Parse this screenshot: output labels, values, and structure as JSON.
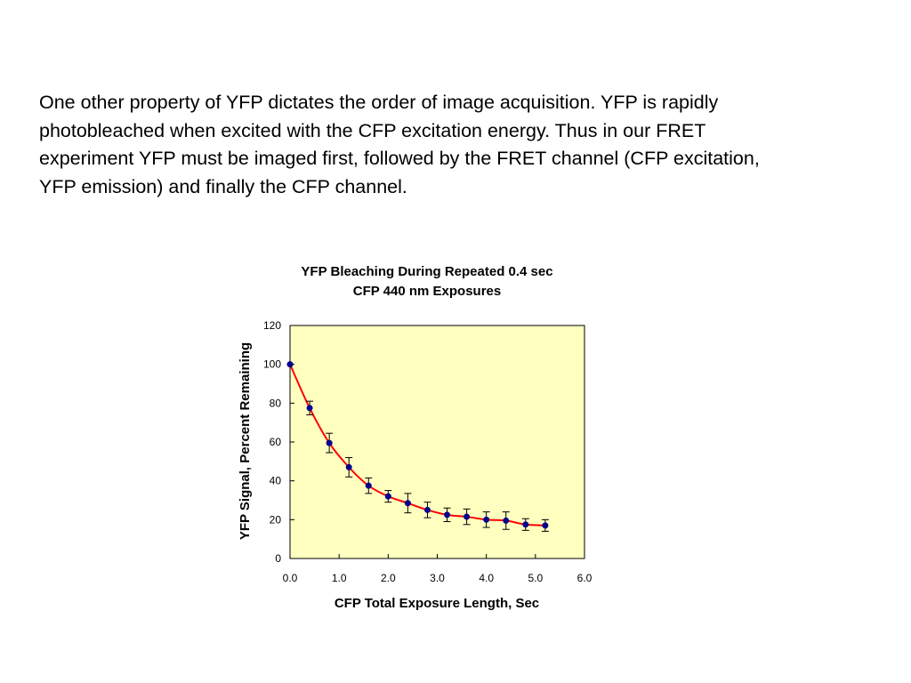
{
  "body_text": "One other property of YFP dictates the order of image acquisition. YFP is rapidly\nphotobleached when excited with the CFP excitation energy. Thus in our FRET\nexperiment YFP must be imaged first, followed by the FRET channel (CFP excitation,\nYFP emission) and finally the CFP channel.",
  "colors": {
    "plot_background": "#ffffc0",
    "line": "#ff0000",
    "marker": "#00008b",
    "error_bar": "#000000"
  },
  "chart_data": {
    "type": "scatter",
    "title_lines": [
      "YFP Bleaching During Repeated 0.4 sec",
      "CFP 440 nm Exposures"
    ],
    "xlabel": "CFP Total Exposure Length, Sec",
    "ylabel": "YFP Signal, Percent Remaining",
    "xlim": [
      0,
      6.0
    ],
    "ylim": [
      0,
      120
    ],
    "xticks": [
      "0.0",
      "1.0",
      "2.0",
      "3.0",
      "4.0",
      "5.0",
      "6.0"
    ],
    "yticks": [
      "0",
      "20",
      "40",
      "60",
      "80",
      "100",
      "120"
    ],
    "grid": false,
    "legend": "none",
    "series": [
      {
        "x": [
          0.0,
          0.4,
          0.8,
          1.2,
          1.6,
          2.0,
          2.4,
          2.8,
          3.2,
          3.6,
          4.0,
          4.4,
          4.8,
          5.2
        ],
        "y": [
          100,
          77.5,
          59.5,
          47,
          37.5,
          32,
          28.5,
          25,
          22.5,
          21.5,
          20,
          19.5,
          17.5,
          17
        ],
        "error": [
          0,
          3.5,
          5,
          5,
          4,
          3,
          5,
          4,
          3.5,
          4,
          4,
          4.5,
          3,
          3
        ]
      }
    ]
  }
}
